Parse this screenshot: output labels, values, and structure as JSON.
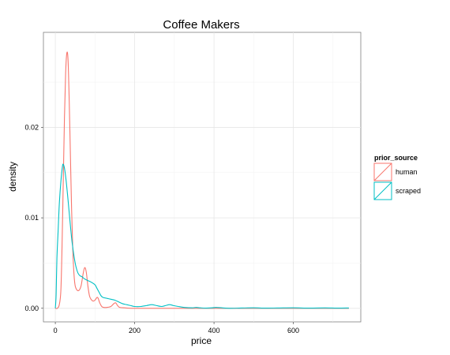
{
  "chart_data": {
    "type": "line",
    "title": "Coffee Makers",
    "xlabel": "price",
    "ylabel": "density",
    "xlim": [
      -30,
      770
    ],
    "ylim": [
      -0.0015,
      0.0305
    ],
    "x_ticks": [
      {
        "value": 0,
        "label": "0"
      },
      {
        "value": 200,
        "label": "200"
      },
      {
        "value": 400,
        "label": "400"
      },
      {
        "value": 600,
        "label": "600"
      }
    ],
    "y_ticks": [
      {
        "value": 0.0,
        "label": "0.00"
      },
      {
        "value": 0.01,
        "label": "0.01"
      },
      {
        "value": 0.02,
        "label": "0.02"
      }
    ],
    "grid": true,
    "legend": {
      "title": "prior_source",
      "position": "right",
      "entries": [
        {
          "name": "human",
          "color": "#f8766d"
        },
        {
          "name": "scraped",
          "color": "#00bfc4"
        }
      ]
    },
    "series": [
      {
        "name": "human",
        "color": "#f8766d",
        "points": [
          [
            0,
            0.0
          ],
          [
            5,
            0.0
          ],
          [
            10,
            0.0004
          ],
          [
            14,
            0.002
          ],
          [
            17,
            0.007
          ],
          [
            20,
            0.014
          ],
          [
            23,
            0.021
          ],
          [
            26,
            0.026
          ],
          [
            29,
            0.0282
          ],
          [
            32,
            0.0275
          ],
          [
            35,
            0.023
          ],
          [
            38,
            0.017
          ],
          [
            41,
            0.011
          ],
          [
            44,
            0.0065
          ],
          [
            47,
            0.0038
          ],
          [
            50,
            0.0025
          ],
          [
            55,
            0.002
          ],
          [
            60,
            0.002
          ],
          [
            65,
            0.0025
          ],
          [
            70,
            0.0038
          ],
          [
            74,
            0.0045
          ],
          [
            78,
            0.004
          ],
          [
            82,
            0.0025
          ],
          [
            86,
            0.0014
          ],
          [
            90,
            0.001
          ],
          [
            95,
            0.0008
          ],
          [
            100,
            0.0009
          ],
          [
            105,
            0.0012
          ],
          [
            108,
            0.0011
          ],
          [
            112,
            0.0006
          ],
          [
            117,
            0.0002
          ],
          [
            122,
            0.0001
          ],
          [
            130,
            0.0001
          ],
          [
            140,
            0.0002
          ],
          [
            147,
            0.0005
          ],
          [
            152,
            0.0006
          ],
          [
            157,
            0.0003
          ],
          [
            162,
            0.0001
          ],
          [
            175,
            5e-05
          ],
          [
            200,
            0.0
          ],
          [
            300,
            0.0
          ],
          [
            400,
            0.0
          ],
          [
            500,
            0.0
          ],
          [
            600,
            0.0
          ],
          [
            740,
            0.0
          ]
        ]
      },
      {
        "name": "scraped",
        "color": "#00bfc4",
        "points": [
          [
            0,
            0.0
          ],
          [
            2,
            0.0015
          ],
          [
            4,
            0.0055
          ],
          [
            7,
            0.0085
          ],
          [
            10,
            0.0115
          ],
          [
            14,
            0.014
          ],
          [
            18,
            0.0157
          ],
          [
            20,
            0.0159
          ],
          [
            23,
            0.0155
          ],
          [
            27,
            0.0142
          ],
          [
            32,
            0.012
          ],
          [
            37,
            0.0096
          ],
          [
            42,
            0.0074
          ],
          [
            47,
            0.0058
          ],
          [
            52,
            0.0046
          ],
          [
            57,
            0.0039
          ],
          [
            62,
            0.0036
          ],
          [
            67,
            0.0035
          ],
          [
            72,
            0.0033
          ],
          [
            80,
            0.0031
          ],
          [
            90,
            0.0029
          ],
          [
            100,
            0.0026
          ],
          [
            105,
            0.0022
          ],
          [
            110,
            0.0018
          ],
          [
            115,
            0.0014
          ],
          [
            120,
            0.0012
          ],
          [
            130,
            0.0011
          ],
          [
            140,
            0.001
          ],
          [
            150,
            0.0009
          ],
          [
            160,
            0.0007
          ],
          [
            170,
            0.0005
          ],
          [
            180,
            0.0004
          ],
          [
            190,
            0.0003
          ],
          [
            200,
            0.0002
          ],
          [
            215,
            0.0002
          ],
          [
            230,
            0.0003
          ],
          [
            243,
            0.0004
          ],
          [
            255,
            0.0003
          ],
          [
            268,
            0.0002
          ],
          [
            278,
            0.0003
          ],
          [
            288,
            0.0004
          ],
          [
            298,
            0.0003
          ],
          [
            310,
            0.0002
          ],
          [
            325,
            0.0001
          ],
          [
            345,
            5e-05
          ],
          [
            355,
            0.0001
          ],
          [
            365,
            5e-05
          ],
          [
            380,
            2e-05
          ],
          [
            395,
            5e-05
          ],
          [
            405,
            0.0001
          ],
          [
            420,
            5e-05
          ],
          [
            440,
            0.0
          ],
          [
            470,
            3e-05
          ],
          [
            500,
            5e-05
          ],
          [
            530,
            2e-05
          ],
          [
            560,
            3e-05
          ],
          [
            600,
            5e-05
          ],
          [
            640,
            2e-05
          ],
          [
            680,
            4e-05
          ],
          [
            710,
            2e-05
          ],
          [
            740,
            3e-05
          ]
        ]
      }
    ]
  }
}
